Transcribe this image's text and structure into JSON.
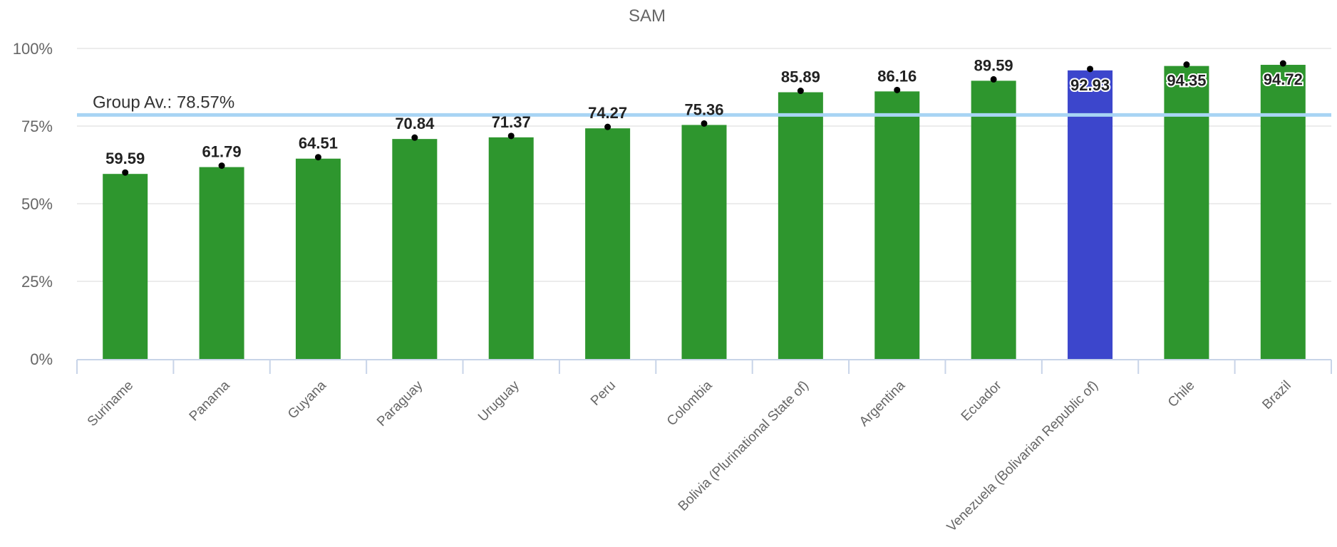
{
  "chart_data": {
    "type": "bar",
    "title": "SAM",
    "xlabel": "",
    "ylabel": "",
    "ylim": [
      0,
      100
    ],
    "yticks": [
      "0%",
      "25%",
      "50%",
      "75%",
      "100%"
    ],
    "grid": true,
    "categories": [
      "Suriname",
      "Panama",
      "Guyana",
      "Paraguay",
      "Uruguay",
      "Peru",
      "Colombia",
      "Bolivia (Plurinational State of)",
      "Argentina",
      "Ecuador",
      "Venezuela (Bolivarian Republic of)",
      "Chile",
      "Brazil"
    ],
    "values": [
      59.59,
      61.79,
      64.51,
      70.84,
      71.37,
      74.27,
      75.36,
      85.89,
      86.16,
      89.59,
      92.93,
      94.35,
      94.72
    ],
    "value_labels": [
      "59.59",
      "61.79",
      "64.51",
      "70.84",
      "71.37",
      "74.27",
      "75.36",
      "85.89",
      "86.16",
      "89.59",
      "92.93",
      "94.35",
      "94.72"
    ],
    "highlight_index": 10,
    "colors": {
      "bar": "#2e962e",
      "highlight": "#3c46cc",
      "average_line": "#a8d4f4",
      "marker": "#000000"
    },
    "average": {
      "value": 78.57,
      "label": "Group Av.: 78.57%"
    }
  }
}
